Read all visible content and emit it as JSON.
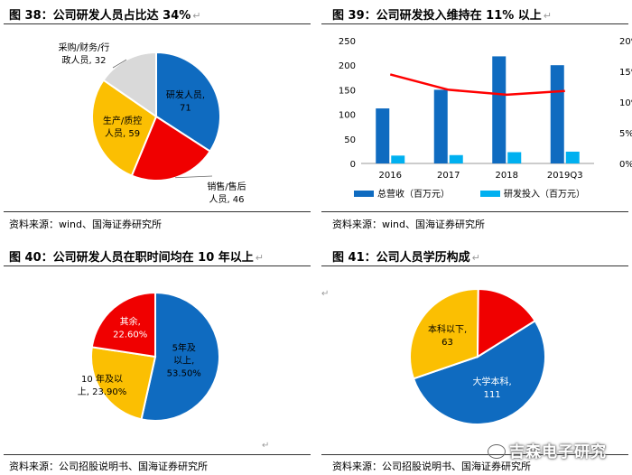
{
  "titles": {
    "c38": "图 38：公司研发人员占比达 34%",
    "c39": "图 39：公司研发投入维持在 11% 以上",
    "c40": "图 40：公司研发人员在职时间均在 10 年以上",
    "c41": "图 41：公司人员学历构成"
  },
  "sources": {
    "s1": "资料来源：wind、国海证券研究所",
    "s2": "资料来源：wind、国海证券研究所",
    "s3": "资料来源：公司招股说明书、国海证券研究所",
    "s4": "资料来源：公司招股说明书、国海证券研究所"
  },
  "watermark": "吉森电子研究",
  "para_mark": "↵",
  "colors": {
    "blue": "#0F6BC0",
    "red": "#F00000",
    "gold": "#FBBF02",
    "gray": "#D9D9D9",
    "cyan": "#00B0F0",
    "line": "#FF0000"
  },
  "chart_data": [
    {
      "type": "pie",
      "title": "图 38：公司研发人员占比达 34%",
      "slices": [
        {
          "label": "研发人员",
          "value": 71,
          "text": "研发人员,\n71",
          "color": "#0F6BC0"
        },
        {
          "label": "销售/售后人员",
          "value": 46,
          "text": "销售/售后\n人员, 46",
          "color": "#F00000"
        },
        {
          "label": "生产/质控人员",
          "value": 59,
          "text": "生产/质控\n人员, 59",
          "color": "#FBBF02"
        },
        {
          "label": "采购/财务/行政人员",
          "value": 32,
          "text": "采购/财务/行\n政人员, 32",
          "color": "#D9D9D9"
        }
      ]
    },
    {
      "type": "bar",
      "title": "图 39：公司研发投入维持在 11% 以上",
      "categories": [
        "2016",
        "2017",
        "2018",
        "2019Q3"
      ],
      "series": [
        {
          "name": "总营收（百万元）",
          "type": "bar",
          "axis": "left",
          "values": [
            112,
            150,
            218,
            200
          ],
          "color": "#0F6BC0"
        },
        {
          "name": "研发投入（百万元）",
          "type": "bar",
          "axis": "left",
          "values": [
            16,
            17,
            23,
            24
          ],
          "color": "#00B0F0"
        },
        {
          "name": "",
          "type": "line",
          "axis": "right",
          "values": [
            0.145,
            0.12,
            0.112,
            0.118
          ],
          "color": "#FF0000"
        }
      ],
      "left_axis": {
        "ylim": [
          0,
          250
        ],
        "ticks": [
          0,
          50,
          100,
          150,
          200,
          250
        ]
      },
      "right_axis": {
        "ylim": [
          0,
          0.2
        ],
        "ticks": [
          "0%",
          "5%",
          "10%",
          "15%",
          "20%"
        ]
      },
      "legend": "bottom"
    },
    {
      "type": "pie",
      "title": "图 40：公司研发人员在职时间均在 10 年以上",
      "slices": [
        {
          "label": "5年及以上",
          "value": 53.5,
          "text": "5年及\n以上,\n53.50%",
          "color": "#0F6BC0"
        },
        {
          "label": "10年及以上",
          "value": 23.9,
          "text": "10 年及以\n上, 23.90%",
          "color": "#FBBF02"
        },
        {
          "label": "其余",
          "value": 22.6,
          "text": "其余,\n22.60%",
          "color": "#F00000"
        }
      ]
    },
    {
      "type": "pie",
      "title": "图 41：公司人员学历构成",
      "slices": [
        {
          "label": "大学本科",
          "value": 111,
          "text": "大学本科,\n111",
          "color": "#0F6BC0"
        },
        {
          "label": "本科以下",
          "value": 63,
          "text": "本科以下,\n63",
          "color": "#FBBF02"
        },
        {
          "label": "",
          "value": 33,
          "text": "",
          "color": "#F00000"
        }
      ]
    }
  ]
}
